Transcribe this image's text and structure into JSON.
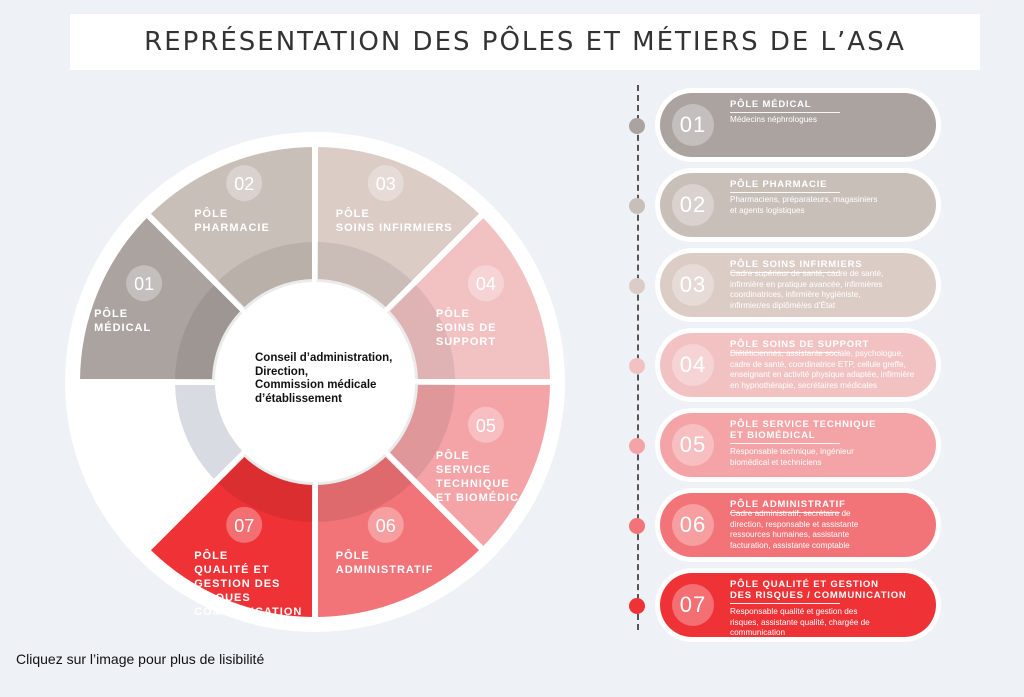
{
  "title": "REPRÉSENTATION DES PÔLES ET MÉTIERS DE L’ASA",
  "center_lines": [
    "Conseil d’administration,",
    "Direction,",
    "Commission médicale",
    "d’établissement"
  ],
  "caption": "Cliquez sur l’image pour plus de lisibilité",
  "wheel": [
    {
      "num": "01",
      "lines": [
        "PÔLE",
        "MÉDICAL"
      ],
      "color": "#aba3a0"
    },
    {
      "num": "02",
      "lines": [
        "PÔLE",
        "PHARMACIE"
      ],
      "color": "#c9bfb9"
    },
    {
      "num": "03",
      "lines": [
        "PÔLE",
        "SOINS INFIRMIERS"
      ],
      "color": "#dcccc6"
    },
    {
      "num": "04",
      "lines": [
        "PÔLE",
        "SOINS DE",
        "SUPPORT"
      ],
      "color": "#f2c2c3"
    },
    {
      "num": "05",
      "lines": [
        "PÔLE",
        "SERVICE",
        "TECHNIQUE",
        "ET BIOMÉDICAL"
      ],
      "color": "#f4a4a7"
    },
    {
      "num": "06",
      "lines": [
        "PÔLE",
        "ADMINISTRATIF"
      ],
      "color": "#f27478"
    },
    {
      "num": "07",
      "lines": [
        "PÔLE",
        "QUALITÉ ET",
        "GESTION DES",
        "RISQUES",
        "COMMUNICATION"
      ],
      "color": "#ee3236"
    }
  ],
  "cards": [
    {
      "num": "01",
      "title": [
        "PÔLE MÉDICAL"
      ],
      "desc": [
        "Médecins néphrologues"
      ],
      "color": "#aba3a0"
    },
    {
      "num": "02",
      "title": [
        "PÔLE PHARMACIE"
      ],
      "desc": [
        "Pharmaciens, préparateurs, magasiniers",
        "et agents logistiques"
      ],
      "color": "#c9bfb9"
    },
    {
      "num": "03",
      "title": [
        "PÔLE SOINS INFIRMIERS"
      ],
      "desc": [
        "Cadre supérieur de santé, cadre de santé,",
        "infirmière en pratique avancée, infirmières",
        "coordinatrices, infirmière hygiéniste,",
        "infirmier/es diplômé/es d’État"
      ],
      "color": "#dcccc6"
    },
    {
      "num": "04",
      "title": [
        "PÔLE SOINS DE SUPPORT"
      ],
      "desc": [
        "Diététiciennes, assistante sociale, psychologue,",
        "cadre de santé, coordinatrice ETP, cellule greffe,",
        "enseignant en activité physique adaptée, infirmière",
        "en hypnothérapie, secrétaires médicales"
      ],
      "color": "#f2c2c3"
    },
    {
      "num": "05",
      "title": [
        "PÔLE SERVICE TECHNIQUE",
        "ET BIOMÉDICAL"
      ],
      "desc": [
        "Responsable technique, ingénieur",
        "biomédical et techniciens"
      ],
      "color": "#f4a4a7"
    },
    {
      "num": "06",
      "title": [
        "PÔLE ADMINISTRATIF"
      ],
      "desc": [
        "Cadre administratif, secrétaire de",
        "direction, responsable et assistante",
        "ressources humaines, assistante",
        "facturation, assistante comptable"
      ],
      "color": "#f27478"
    },
    {
      "num": "07",
      "title": [
        "PÔLE QUALITÉ ET GESTION",
        "DES RISQUES / COMMUNICATION"
      ],
      "desc": [
        "Responsable qualité et gestion des",
        "risques, assistante qualité, chargée de",
        "communication"
      ],
      "color": "#ee3236"
    }
  ]
}
